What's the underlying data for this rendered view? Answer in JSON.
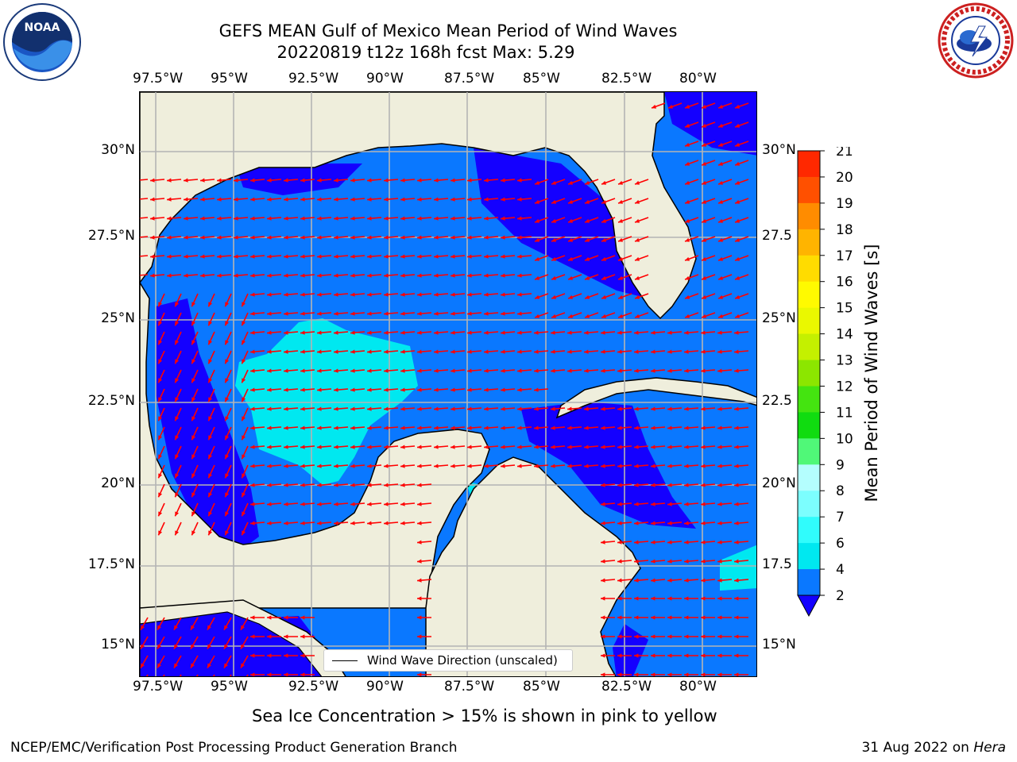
{
  "title": {
    "line1": "GEFS MEAN Gulf of Mexico Mean Period of Wind Waves",
    "line2": "20220819 t12z 168h fcst   Max: 5.29"
  },
  "axes": {
    "lon_labels": [
      "97.5°W",
      "95°W",
      "92.5°W",
      "90°W",
      "87.5°W",
      "85°W",
      "82.5°W",
      "80°W"
    ],
    "lat_labels_left": [
      "30°N",
      "27.5°N",
      "25°N",
      "22.5°N",
      "20°N",
      "17.5°N",
      "15°N"
    ],
    "lat_labels_right": [
      "30°N",
      "27.5",
      "25°N",
      "22.5",
      "20°N",
      "17.5",
      "15°N"
    ]
  },
  "colorbar": {
    "label": "Mean Period of Wind Waves [s]",
    "ticks": [
      "2",
      "4",
      "6",
      "7",
      "8",
      "9",
      "10",
      "11",
      "12",
      "13",
      "14",
      "15",
      "16",
      "17",
      "18",
      "19",
      "20",
      "21"
    ],
    "colors": [
      "#0a78ff",
      "#00e8f0",
      "#30fcfc",
      "#7cfefe",
      "#b4fefe",
      "#50f878",
      "#10dc10",
      "#44e410",
      "#8ce600",
      "#c4f000",
      "#eaf800",
      "#fffa00",
      "#ffdc00",
      "#ffb400",
      "#ff8c00",
      "#ff5000",
      "#ff2800"
    ],
    "under_color": "#1400ff"
  },
  "map": {
    "land_color": "#efeedc",
    "period_levels": [
      {
        "range": "< 2",
        "color": "#1400ff"
      },
      {
        "range": "2-4",
        "color": "#0a78ff"
      },
      {
        "range": "4-6",
        "color": "#00e8f0"
      }
    ],
    "arrow_color": "#ff0000",
    "grid_color": "#b4b4b4"
  },
  "legend": {
    "label": "Wind Wave Direction (unscaled)"
  },
  "subtitle": "Sea Ice Concentration > 15% is shown in pink to yellow",
  "footer": {
    "left": "NCEP/EMC/Verification Post Processing Product Generation Branch",
    "date": "31 Aug 2022 on ",
    "host": "Hera"
  }
}
